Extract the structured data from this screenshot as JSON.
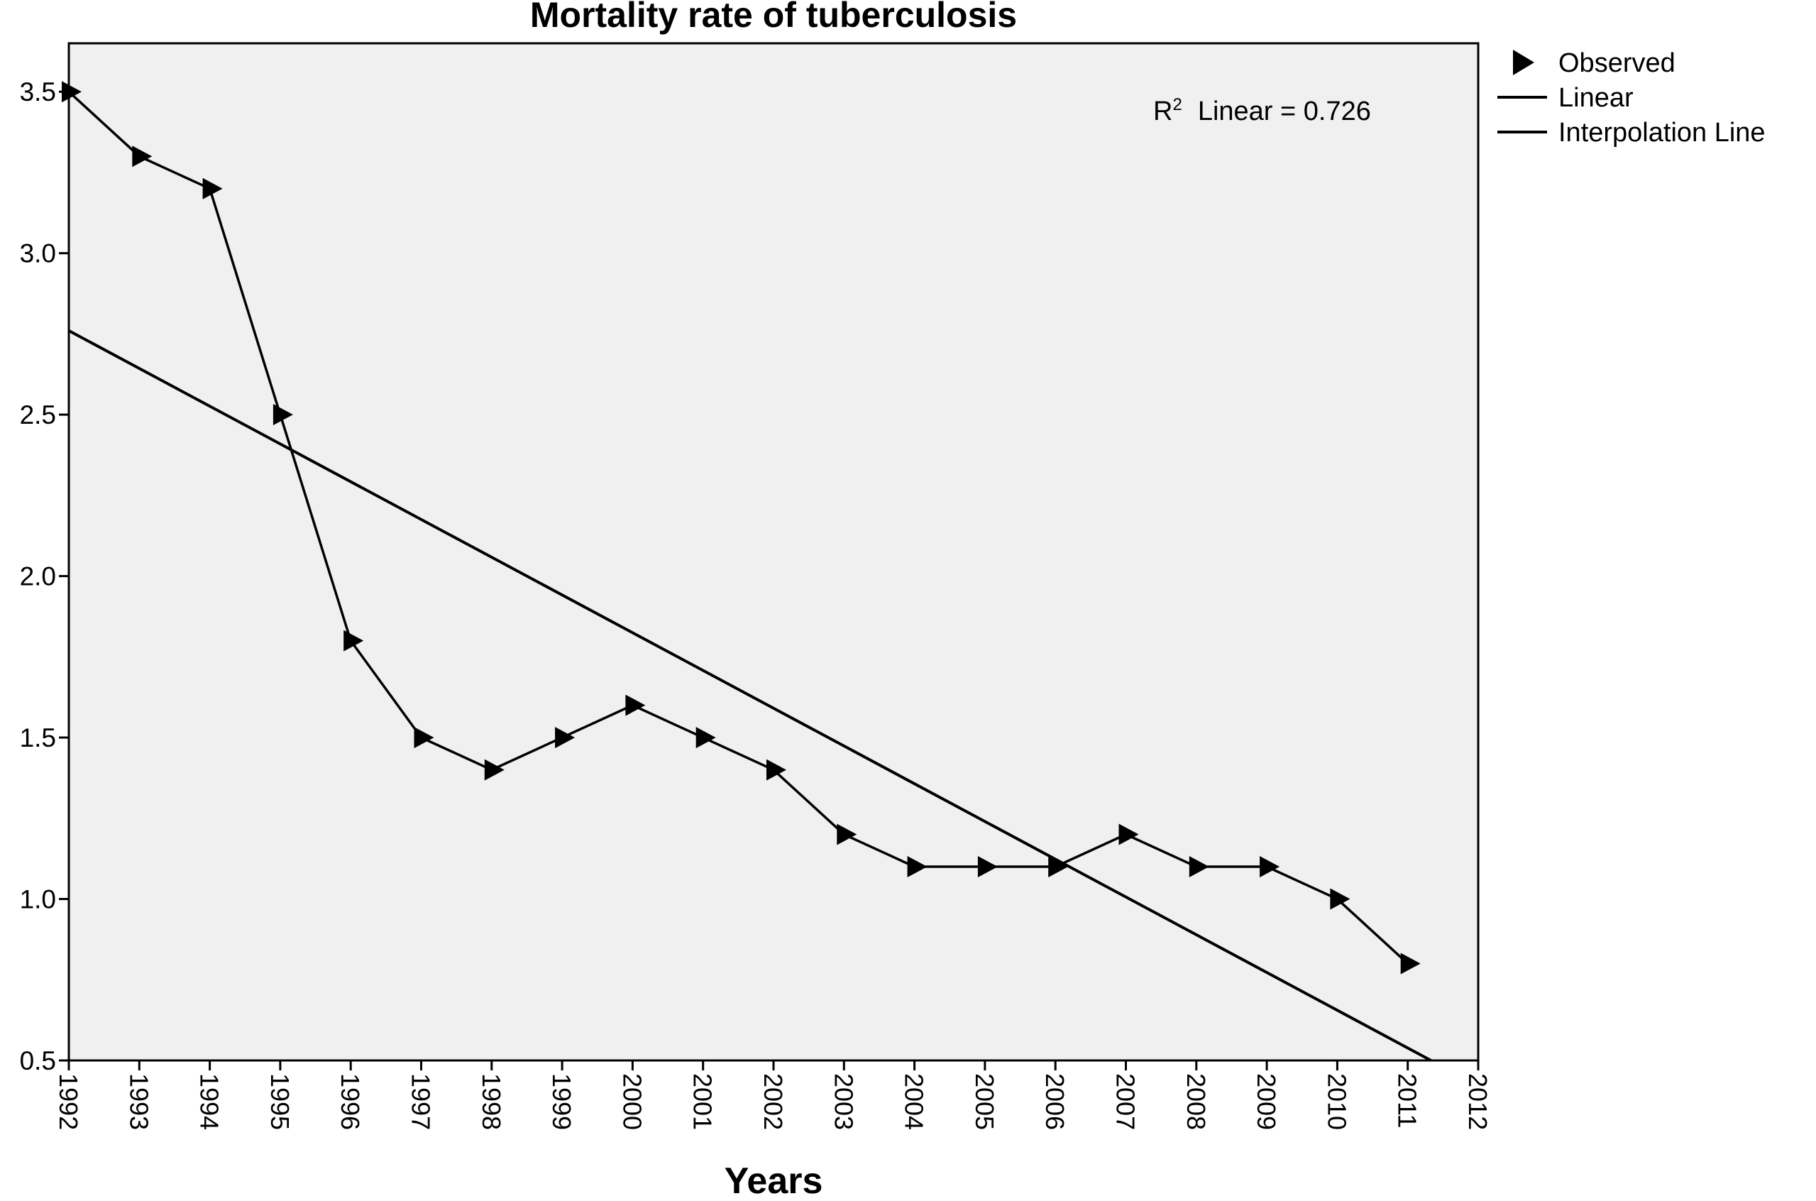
{
  "chart_data": {
    "type": "line",
    "title": "Mortality rate of tuberculosis",
    "xlabel": "Years",
    "ylabel": "",
    "xlim": [
      1992,
      2012
    ],
    "ylim": [
      0.5,
      3.65
    ],
    "x_ticks": [
      "1992",
      "1993",
      "1994",
      "1995",
      "1996",
      "1997",
      "1998",
      "1999",
      "2000",
      "2001",
      "2002",
      "2003",
      "2004",
      "2005",
      "2006",
      "2007",
      "2008",
      "2009",
      "2010",
      "2011",
      "2012"
    ],
    "y_ticks": [
      "0.5",
      "1.0",
      "1.5",
      "2.0",
      "2.5",
      "3.0",
      "3.5"
    ],
    "grid": false,
    "legend_position": "right",
    "legend": [
      {
        "label": "Observed",
        "marker": "triangle-right"
      },
      {
        "label": "Linear",
        "marker": "line"
      },
      {
        "label": "Interpolation Line",
        "marker": "line"
      }
    ],
    "annotation": {
      "r2_label": "R",
      "r2_superscript": "2",
      "r2_text": "Linear = 0.726"
    },
    "series": [
      {
        "name": "Observed",
        "x": [
          1992,
          1993,
          1994,
          1995,
          1996,
          1997,
          1998,
          1999,
          2000,
          2001,
          2002,
          2003,
          2004,
          2005,
          2006,
          2007,
          2008,
          2009,
          2010,
          2011
        ],
        "values": [
          3.5,
          3.3,
          3.2,
          2.5,
          1.8,
          1.5,
          1.4,
          1.5,
          1.6,
          1.5,
          1.4,
          1.2,
          1.1,
          1.1,
          1.1,
          1.2,
          1.1,
          1.1,
          1.0,
          0.8
        ]
      }
    ],
    "linear_fit": {
      "x": [
        1992,
        2011.33
      ],
      "values": [
        2.76,
        0.5
      ]
    },
    "colors": {
      "plot_background": "#f0f0f0",
      "line": "#000000",
      "marker": "#000000"
    }
  }
}
